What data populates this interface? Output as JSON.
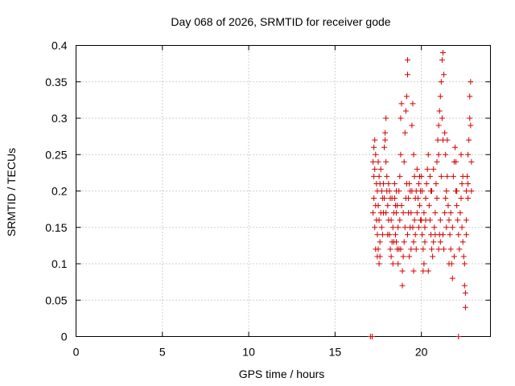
{
  "chart_data": {
    "type": "scatter",
    "title": "Day 068 of 2026, SRMTID for receiver gode",
    "xlabel": "GPS time / hours",
    "ylabel": "SRMTID / TECUs",
    "xlim": [
      0,
      24
    ],
    "ylim": [
      0,
      0.4
    ],
    "grid": true,
    "xticks": [
      0,
      5,
      10,
      15,
      20
    ],
    "xtick_labels": [
      "0",
      "5",
      "10",
      "15",
      "20"
    ],
    "yticks": [
      0,
      0.05,
      0.1,
      0.15,
      0.2,
      0.25,
      0.3,
      0.35,
      0.4
    ],
    "ytick_labels": [
      "0",
      "0.05",
      "0.1",
      "0.15",
      "0.2",
      "0.25",
      "0.3",
      "0.35",
      "0.4"
    ],
    "marker": "+",
    "marker_color": "#d40000",
    "series": [
      {
        "name": "SRMTID",
        "points": [
          [
            17.05,
            0.0
          ],
          [
            17.15,
            0.0
          ],
          [
            22.15,
            0.0
          ],
          [
            17.2,
            0.24
          ],
          [
            17.25,
            0.22
          ],
          [
            17.3,
            0.23
          ],
          [
            17.3,
            0.27
          ],
          [
            17.35,
            0.25
          ],
          [
            17.4,
            0.21
          ],
          [
            17.45,
            0.2
          ],
          [
            17.5,
            0.18
          ],
          [
            17.55,
            0.16
          ],
          [
            17.45,
            0.14
          ],
          [
            17.5,
            0.12
          ],
          [
            17.6,
            0.11
          ],
          [
            17.55,
            0.1
          ],
          [
            17.6,
            0.13
          ],
          [
            17.7,
            0.15
          ],
          [
            17.65,
            0.17
          ],
          [
            17.75,
            0.19
          ],
          [
            17.8,
            0.21
          ],
          [
            17.85,
            0.26
          ],
          [
            17.9,
            0.28
          ],
          [
            17.95,
            0.3
          ],
          [
            17.9,
            0.27
          ],
          [
            18.0,
            0.22
          ],
          [
            18.0,
            0.2
          ],
          [
            18.05,
            0.18
          ],
          [
            18.1,
            0.16
          ],
          [
            18.15,
            0.14
          ],
          [
            18.2,
            0.12
          ],
          [
            18.25,
            0.11
          ],
          [
            18.3,
            0.13
          ],
          [
            18.35,
            0.15
          ],
          [
            18.4,
            0.17
          ],
          [
            18.45,
            0.19
          ],
          [
            18.5,
            0.18
          ],
          [
            18.55,
            0.2
          ],
          [
            18.5,
            0.14
          ],
          [
            18.6,
            0.12
          ],
          [
            18.65,
            0.1
          ],
          [
            18.7,
            0.12
          ],
          [
            18.7,
            0.2
          ],
          [
            18.75,
            0.22
          ],
          [
            18.8,
            0.25
          ],
          [
            18.8,
            0.3
          ],
          [
            18.85,
            0.32
          ],
          [
            18.9,
            0.09
          ],
          [
            18.9,
            0.07
          ],
          [
            18.95,
            0.11
          ],
          [
            19.0,
            0.13
          ],
          [
            19.0,
            0.24
          ],
          [
            19.05,
            0.28
          ],
          [
            19.1,
            0.31
          ],
          [
            19.15,
            0.33
          ],
          [
            19.2,
            0.38
          ],
          [
            19.2,
            0.36
          ],
          [
            19.25,
            0.19
          ],
          [
            19.3,
            0.21
          ],
          [
            19.3,
            0.11
          ],
          [
            19.35,
            0.15
          ],
          [
            19.4,
            0.17
          ],
          [
            19.45,
            0.2
          ],
          [
            19.45,
            0.29
          ],
          [
            19.5,
            0.32
          ],
          [
            19.55,
            0.25
          ],
          [
            19.6,
            0.22
          ],
          [
            19.6,
            0.16
          ],
          [
            19.65,
            0.14
          ],
          [
            19.7,
            0.12
          ],
          [
            19.75,
            0.17
          ],
          [
            19.8,
            0.19
          ],
          [
            19.85,
            0.21
          ],
          [
            19.9,
            0.18
          ],
          [
            19.95,
            0.2
          ],
          [
            20.0,
            0.22
          ],
          [
            20.0,
            0.16
          ],
          [
            20.05,
            0.14
          ],
          [
            20.1,
            0.12
          ],
          [
            20.1,
            0.09
          ],
          [
            20.15,
            0.1
          ],
          [
            20.2,
            0.13
          ],
          [
            20.25,
            0.19
          ],
          [
            20.3,
            0.21
          ],
          [
            20.35,
            0.23
          ],
          [
            20.4,
            0.25
          ],
          [
            20.45,
            0.18
          ],
          [
            20.5,
            0.16
          ],
          [
            20.55,
            0.14
          ],
          [
            20.6,
            0.12
          ],
          [
            20.65,
            0.11
          ],
          [
            20.7,
            0.13
          ],
          [
            20.75,
            0.15
          ],
          [
            20.8,
            0.17
          ],
          [
            20.85,
            0.21
          ],
          [
            20.9,
            0.24
          ],
          [
            20.95,
            0.27
          ],
          [
            21.0,
            0.29
          ],
          [
            21.05,
            0.31
          ],
          [
            21.1,
            0.33
          ],
          [
            21.15,
            0.35
          ],
          [
            21.2,
            0.38
          ],
          [
            21.25,
            0.39
          ],
          [
            21.3,
            0.36
          ],
          [
            21.2,
            0.3
          ],
          [
            21.15,
            0.22
          ],
          [
            21.1,
            0.16
          ],
          [
            21.05,
            0.14
          ],
          [
            21.0,
            0.12
          ],
          [
            21.25,
            0.14
          ],
          [
            21.3,
            0.12
          ],
          [
            21.35,
            0.17
          ],
          [
            21.4,
            0.19
          ],
          [
            21.45,
            0.2
          ],
          [
            21.5,
            0.22
          ],
          [
            21.55,
            0.18
          ],
          [
            21.6,
            0.16
          ],
          [
            21.65,
            0.14
          ],
          [
            21.7,
            0.12
          ],
          [
            21.75,
            0.1
          ],
          [
            21.8,
            0.08
          ],
          [
            21.8,
            0.15
          ],
          [
            21.85,
            0.22
          ],
          [
            21.9,
            0.24
          ],
          [
            21.95,
            0.26
          ],
          [
            22.0,
            0.2
          ],
          [
            22.05,
            0.18
          ],
          [
            22.1,
            0.16
          ],
          [
            22.15,
            0.14
          ],
          [
            22.2,
            0.12
          ],
          [
            22.25,
            0.17
          ],
          [
            22.3,
            0.19
          ],
          [
            22.35,
            0.21
          ],
          [
            22.4,
            0.13
          ],
          [
            22.45,
            0.11
          ],
          [
            22.5,
            0.1
          ],
          [
            22.5,
            0.07
          ],
          [
            22.55,
            0.04
          ],
          [
            22.55,
            0.06
          ],
          [
            22.6,
            0.16
          ],
          [
            22.6,
            0.2
          ],
          [
            22.65,
            0.22
          ],
          [
            22.7,
            0.25
          ],
          [
            22.75,
            0.27
          ],
          [
            22.8,
            0.3
          ],
          [
            22.8,
            0.33
          ],
          [
            22.85,
            0.35
          ],
          [
            22.85,
            0.29
          ],
          [
            22.9,
            0.24
          ],
          [
            22.7,
            0.19
          ],
          [
            22.6,
            0.14
          ],
          [
            22.4,
            0.22
          ],
          [
            22.3,
            0.25
          ],
          [
            22.0,
            0.24
          ],
          [
            21.9,
            0.11
          ],
          [
            21.6,
            0.1
          ],
          [
            21.5,
            0.27
          ],
          [
            21.4,
            0.25
          ],
          [
            21.35,
            0.28
          ],
          [
            21.25,
            0.27
          ],
          [
            21.0,
            0.25
          ],
          [
            20.9,
            0.19
          ],
          [
            20.7,
            0.23
          ],
          [
            20.6,
            0.2
          ],
          [
            20.5,
            0.22
          ],
          [
            20.4,
            0.09
          ],
          [
            20.2,
            0.15
          ],
          [
            20.15,
            0.17
          ],
          [
            20.05,
            0.2
          ],
          [
            19.95,
            0.16
          ],
          [
            19.85,
            0.15
          ],
          [
            19.75,
            0.23
          ],
          [
            19.7,
            0.2
          ],
          [
            19.65,
            0.19
          ],
          [
            19.55,
            0.13
          ],
          [
            19.5,
            0.15
          ],
          [
            19.4,
            0.12
          ],
          [
            19.35,
            0.2
          ],
          [
            19.25,
            0.17
          ],
          [
            19.15,
            0.21
          ],
          [
            19.1,
            0.19
          ],
          [
            19.05,
            0.15
          ],
          [
            18.95,
            0.17
          ],
          [
            18.85,
            0.18
          ],
          [
            18.75,
            0.16
          ],
          [
            18.65,
            0.15
          ],
          [
            18.6,
            0.18
          ],
          [
            18.55,
            0.17
          ],
          [
            18.45,
            0.21
          ],
          [
            18.4,
            0.13
          ],
          [
            18.3,
            0.19
          ],
          [
            18.25,
            0.16
          ],
          [
            18.2,
            0.19
          ],
          [
            18.15,
            0.2
          ],
          [
            18.1,
            0.21
          ],
          [
            18.05,
            0.14
          ],
          [
            17.95,
            0.17
          ],
          [
            17.85,
            0.19
          ],
          [
            17.8,
            0.17
          ],
          [
            17.7,
            0.2
          ],
          [
            17.65,
            0.23
          ],
          [
            17.6,
            0.21
          ],
          [
            17.55,
            0.22
          ],
          [
            17.5,
            0.24
          ],
          [
            17.4,
            0.16
          ],
          [
            17.35,
            0.18
          ],
          [
            17.3,
            0.15
          ],
          [
            17.25,
            0.19
          ],
          [
            17.2,
            0.17
          ],
          [
            17.25,
            0.26
          ],
          [
            17.35,
            0.12
          ],
          [
            17.45,
            0.11
          ],
          [
            17.75,
            0.14
          ],
          [
            17.95,
            0.24
          ],
          [
            18.35,
            0.1
          ],
          [
            18.55,
            0.13
          ],
          [
            18.8,
            0.12
          ],
          [
            19.2,
            0.14
          ],
          [
            19.55,
            0.09
          ],
          [
            19.9,
            0.22
          ],
          [
            20.25,
            0.16
          ],
          [
            20.55,
            0.2
          ],
          [
            20.8,
            0.14
          ],
          [
            21.1,
            0.13
          ],
          [
            21.45,
            0.15
          ],
          [
            21.7,
            0.17
          ],
          [
            22.05,
            0.2
          ],
          [
            22.35,
            0.15
          ],
          [
            22.7,
            0.21
          ],
          [
            22.9,
            0.2
          ]
        ]
      }
    ]
  }
}
